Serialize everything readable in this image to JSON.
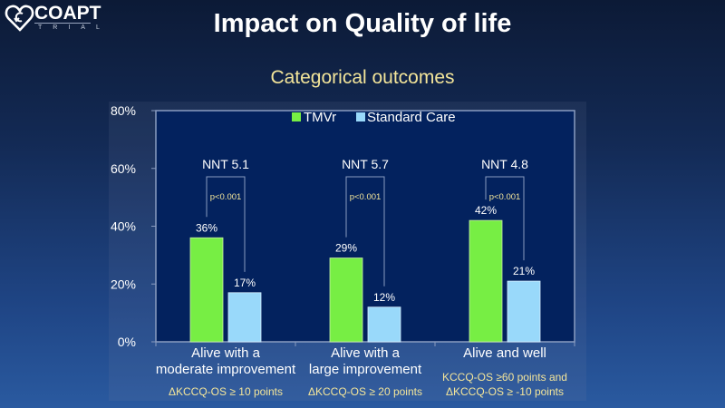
{
  "logo": {
    "name": "COAPT",
    "sub": "TRIAL"
  },
  "title": "Impact on Quality of life",
  "subtitle": "Categorical outcomes",
  "colors": {
    "tmvr": "#77ee44",
    "standard": "#99d9fa",
    "plot_bg": "#03225e",
    "annot": "#f3e59a"
  },
  "chart_data": {
    "type": "bar",
    "title": "Categorical outcomes",
    "xlabel": "",
    "ylabel": "",
    "ylim": [
      0,
      80
    ],
    "yticks": [
      "0%",
      "20%",
      "40%",
      "60%",
      "80%"
    ],
    "ytick_values": [
      0,
      20,
      40,
      60,
      80
    ],
    "legend": {
      "position": "top-center",
      "entries": [
        "TMVr",
        "Standard Care"
      ]
    },
    "categories": [
      [
        "Alive with a",
        "moderate improvement"
      ],
      [
        "Alive with a",
        "large improvement"
      ],
      [
        "Alive and well"
      ]
    ],
    "category_notes": [
      [
        "ΔKCCQ-OS ≥ 10 points"
      ],
      [
        "ΔKCCQ-OS ≥ 20 points"
      ],
      [
        "KCCQ-OS ≥60 points and",
        "ΔKCCQ-OS ≥ -10 points"
      ]
    ],
    "series": [
      {
        "name": "TMVr",
        "values": [
          36,
          29,
          42
        ],
        "labels": [
          "36%",
          "29%",
          "42%"
        ]
      },
      {
        "name": "Standard Care",
        "values": [
          17,
          12,
          21
        ],
        "labels": [
          "17%",
          "12%",
          "21%"
        ]
      }
    ],
    "annotations": [
      {
        "nnt": "NNT 5.1",
        "p": "p<0.001"
      },
      {
        "nnt": "NNT 5.7",
        "p": "p<0.001"
      },
      {
        "nnt": "NNT 4.8",
        "p": "p<0.001"
      }
    ],
    "grid": false
  }
}
